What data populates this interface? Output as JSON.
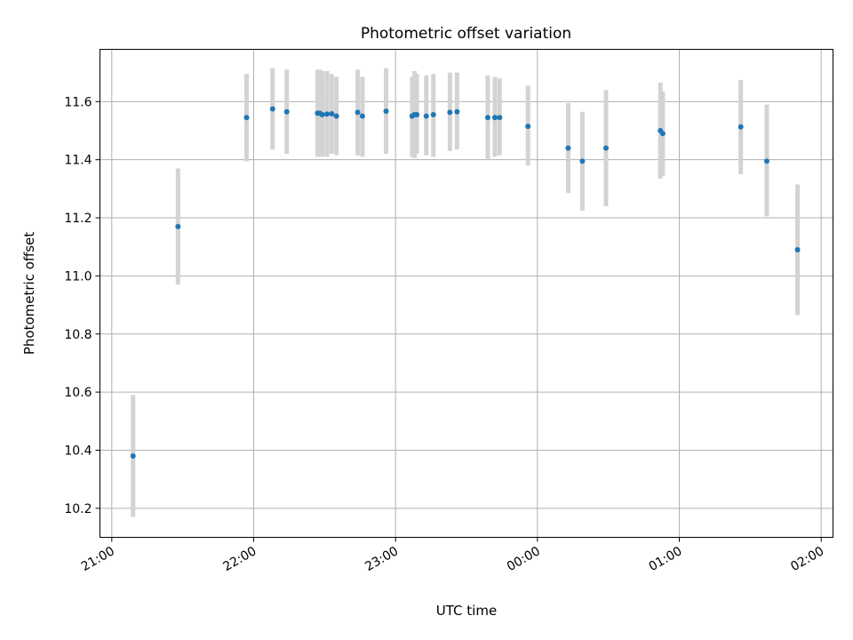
{
  "chart_data": {
    "type": "scatter",
    "title": "Photometric offset variation",
    "xlabel": "UTC time",
    "ylabel": "Photometric offset",
    "x_axis": {
      "kind": "time",
      "range": [
        "20:55",
        "02:05"
      ],
      "tick_labels": [
        "21:00",
        "22:00",
        "23:00",
        "00:00",
        "01:00",
        "02:00"
      ]
    },
    "y_axis": {
      "range": [
        10.1,
        11.78
      ],
      "ticks": [
        10.2,
        10.4,
        10.6,
        10.8,
        11.0,
        11.2,
        11.4,
        11.6
      ],
      "tick_labels": [
        "10.2",
        "10.4",
        "10.6",
        "10.8",
        "11.0",
        "11.2",
        "11.4",
        "11.6"
      ]
    },
    "grid": true,
    "colors": {
      "point": "#1f77b4",
      "errorbar": "#d3d3d3",
      "grid": "#b0b0b0"
    },
    "series": [
      {
        "points": [
          {
            "x": "21:09",
            "y": 10.38,
            "ylo": 10.17,
            "yhi": 10.59
          },
          {
            "x": "21:28",
            "y": 11.17,
            "ylo": 10.97,
            "yhi": 11.37
          },
          {
            "x": "21:57",
            "y": 11.545,
            "ylo": 11.395,
            "yhi": 11.695
          },
          {
            "x": "22:08",
            "y": 11.575,
            "ylo": 11.435,
            "yhi": 11.715
          },
          {
            "x": "22:14",
            "y": 11.565,
            "ylo": 11.42,
            "yhi": 11.71
          },
          {
            "x": "22:27",
            "y": 11.56,
            "ylo": 11.41,
            "yhi": 11.71
          },
          {
            "x": "22:28",
            "y": 11.56,
            "ylo": 11.41,
            "yhi": 11.71
          },
          {
            "x": "22:29",
            "y": 11.555,
            "ylo": 11.41,
            "yhi": 11.705
          },
          {
            "x": "22:31",
            "y": 11.557,
            "ylo": 11.41,
            "yhi": 11.705
          },
          {
            "x": "22:33",
            "y": 11.558,
            "ylo": 11.42,
            "yhi": 11.695
          },
          {
            "x": "22:35",
            "y": 11.55,
            "ylo": 11.415,
            "yhi": 11.685
          },
          {
            "x": "22:44",
            "y": 11.563,
            "ylo": 11.415,
            "yhi": 11.71
          },
          {
            "x": "22:46",
            "y": 11.55,
            "ylo": 11.41,
            "yhi": 11.685
          },
          {
            "x": "22:56",
            "y": 11.567,
            "ylo": 11.42,
            "yhi": 11.715
          },
          {
            "x": "23:07",
            "y": 11.55,
            "ylo": 11.41,
            "yhi": 11.685
          },
          {
            "x": "23:08",
            "y": 11.555,
            "ylo": 11.405,
            "yhi": 11.705
          },
          {
            "x": "23:09",
            "y": 11.555,
            "ylo": 11.42,
            "yhi": 11.695
          },
          {
            "x": "23:13",
            "y": 11.55,
            "ylo": 11.415,
            "yhi": 11.69
          },
          {
            "x": "23:16",
            "y": 11.555,
            "ylo": 11.41,
            "yhi": 11.695
          },
          {
            "x": "23:23",
            "y": 11.563,
            "ylo": 11.43,
            "yhi": 11.7
          },
          {
            "x": "23:26",
            "y": 11.565,
            "ylo": 11.435,
            "yhi": 11.7
          },
          {
            "x": "23:39",
            "y": 11.545,
            "ylo": 11.4,
            "yhi": 11.69
          },
          {
            "x": "23:42",
            "y": 11.545,
            "ylo": 11.41,
            "yhi": 11.685
          },
          {
            "x": "23:44",
            "y": 11.545,
            "ylo": 11.415,
            "yhi": 11.68
          },
          {
            "x": "23:56",
            "y": 11.515,
            "ylo": 11.38,
            "yhi": 11.655
          },
          {
            "x": "00:13",
            "y": 11.44,
            "ylo": 11.285,
            "yhi": 11.595
          },
          {
            "x": "00:19",
            "y": 11.395,
            "ylo": 11.225,
            "yhi": 11.565
          },
          {
            "x": "00:29",
            "y": 11.44,
            "ylo": 11.24,
            "yhi": 11.64
          },
          {
            "x": "00:52",
            "y": 11.5,
            "ylo": 11.335,
            "yhi": 11.665
          },
          {
            "x": "00:53",
            "y": 11.49,
            "ylo": 11.345,
            "yhi": 11.635
          },
          {
            "x": "01:26",
            "y": 11.513,
            "ylo": 11.35,
            "yhi": 11.675
          },
          {
            "x": "01:37",
            "y": 11.395,
            "ylo": 11.205,
            "yhi": 11.59
          },
          {
            "x": "01:50",
            "y": 11.09,
            "ylo": 10.865,
            "yhi": 11.315
          }
        ]
      }
    ]
  }
}
